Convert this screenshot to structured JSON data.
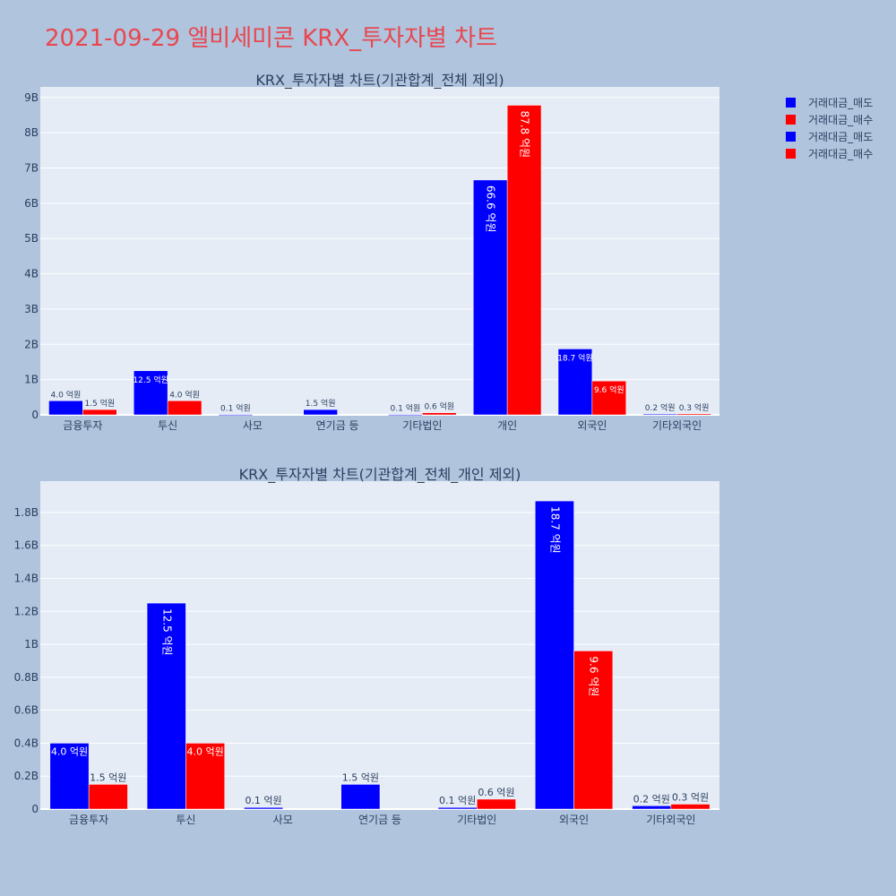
{
  "page_title": "2021-09-29 엘비세미콘 KRX_투자자별 차트",
  "colors": {
    "sell": "#0000ff",
    "buy": "#ff0000",
    "plot_bg": "#e5ecf6",
    "page_bg": "#b0c4de",
    "title": "#e8474f"
  },
  "legend": {
    "placement": "top-right",
    "items": [
      {
        "label": "거래대금_매도",
        "color": "#0000ff"
      },
      {
        "label": "거래대금_매수",
        "color": "#ff0000"
      },
      {
        "label": "거래대금_매도",
        "color": "#0000ff"
      },
      {
        "label": "거래대금_매수",
        "color": "#ff0000"
      }
    ]
  },
  "chart_data": [
    {
      "type": "bar",
      "title": "KRX_투자자별 차트(기관합계_전체 제외)",
      "categories": [
        "금융투자",
        "투신",
        "사모",
        "연기금 등",
        "기타법인",
        "개인",
        "외국인",
        "기타외국인"
      ],
      "series": [
        {
          "name": "거래대금_매도",
          "color": "#0000ff",
          "values": [
            400000000,
            1250000000,
            10000000,
            150000000,
            10000000,
            6660000000,
            1870000000,
            20000000
          ],
          "labels": [
            "4.0 억원",
            "12.5 억원",
            "0.1 억원",
            "1.5 억원",
            "0.1 억원",
            "66.6 억원",
            "18.7 억원",
            "0.2 억원"
          ]
        },
        {
          "name": "거래대금_매수",
          "color": "#ff0000",
          "values": [
            150000000,
            400000000,
            0,
            0,
            60000000,
            8780000000,
            960000000,
            30000000
          ],
          "labels": [
            "1.5 억원",
            "4.0 억원",
            "",
            "",
            "0.6 억원",
            "87.8 억원",
            "9.6 억원",
            "0.3 억원"
          ]
        }
      ],
      "ylim": [
        0,
        9300000000
      ],
      "yticks": [
        0,
        1000000000,
        2000000000,
        3000000000,
        4000000000,
        5000000000,
        6000000000,
        7000000000,
        8000000000,
        9000000000
      ],
      "ytick_labels": [
        "0",
        "1B",
        "2B",
        "3B",
        "4B",
        "5B",
        "6B",
        "7B",
        "8B",
        "9B"
      ],
      "grid": true
    },
    {
      "type": "bar",
      "title": "KRX_투자자별 차트(기관합계_전체_개인 제외)",
      "categories": [
        "금융투자",
        "투신",
        "사모",
        "연기금 등",
        "기타법인",
        "외국인",
        "기타외국인"
      ],
      "series": [
        {
          "name": "거래대금_매도",
          "color": "#0000ff",
          "values": [
            400000000,
            1250000000,
            10000000,
            150000000,
            10000000,
            1870000000,
            20000000
          ],
          "labels": [
            "4.0 억원",
            "12.5 억원",
            "0.1 억원",
            "1.5 억원",
            "0.1 억원",
            "18.7 억원",
            "0.2 억원"
          ]
        },
        {
          "name": "거래대금_매수",
          "color": "#ff0000",
          "values": [
            150000000,
            400000000,
            0,
            0,
            60000000,
            960000000,
            30000000
          ],
          "labels": [
            "1.5 억원",
            "4.0 억원",
            "",
            "",
            "0.6 억원",
            "9.6 억원",
            "0.3 억원"
          ]
        }
      ],
      "ylim": [
        0,
        1990000000
      ],
      "yticks": [
        0,
        200000000,
        400000000,
        600000000,
        800000000,
        1000000000,
        1200000000,
        1400000000,
        1600000000,
        1800000000
      ],
      "ytick_labels": [
        "0",
        "0.2B",
        "0.4B",
        "0.6B",
        "0.8B",
        "1B",
        "1.2B",
        "1.4B",
        "1.6B",
        "1.8B"
      ],
      "grid": true
    }
  ]
}
